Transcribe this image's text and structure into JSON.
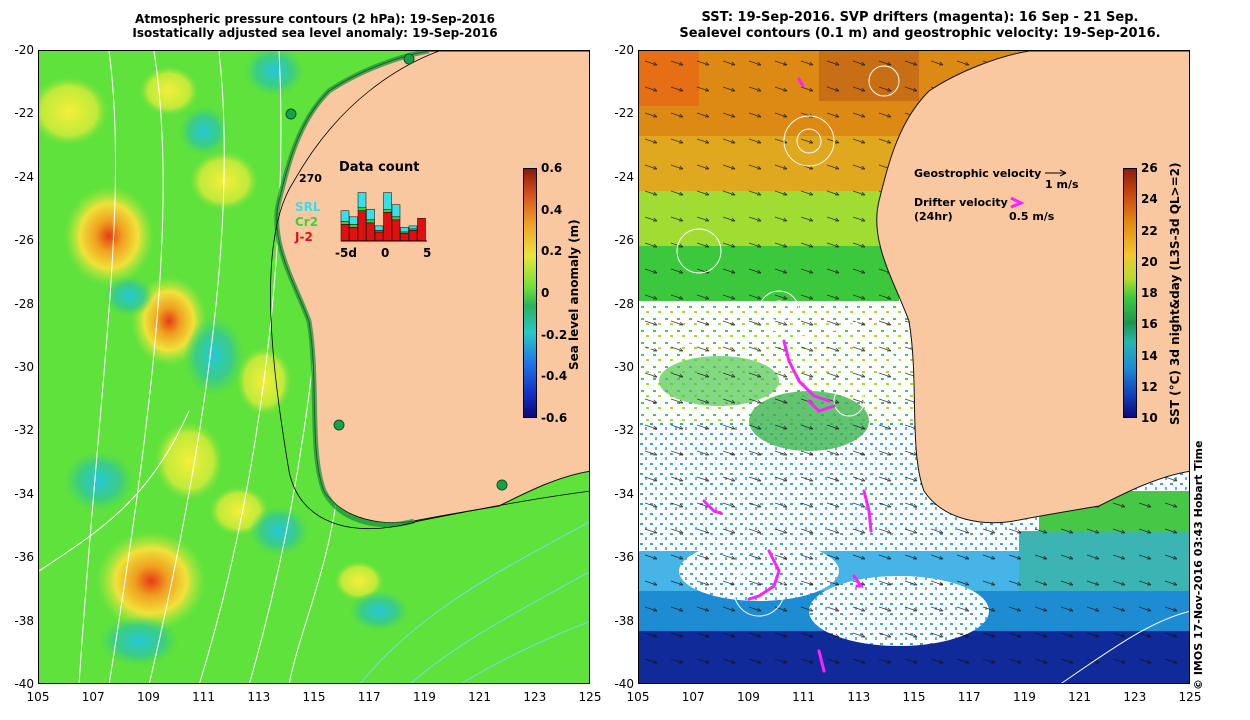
{
  "left_panel": {
    "title_line1": "Atmospheric pressure contours (2 hPa): 19-Sep-2016",
    "title_line2": "Isostatically adjusted sea level anomaly: 19-Sep-2016",
    "colorbar": {
      "label": "Sea level anomaly (m)",
      "ticks": [
        "0.6",
        "0.4",
        "0.2",
        "0",
        "-0.2",
        "-0.4",
        "-0.6"
      ],
      "range": [
        -0.6,
        0.6
      ]
    },
    "inset": {
      "title": "Data count",
      "max_label": "270",
      "legend": [
        {
          "name": "SRL",
          "color": "#36e0e8"
        },
        {
          "name": "Cr2",
          "color": "#3ccf3c"
        },
        {
          "name": "J-2",
          "color": "#e01010"
        }
      ],
      "x_ticks": [
        "-5d",
        "0",
        "5"
      ],
      "bars": [
        {
          "srl": 0.35,
          "cr2": 0.1,
          "j2": 0.55
        },
        {
          "srl": 0.25,
          "cr2": 0.1,
          "j2": 0.45
        },
        {
          "srl": 0.5,
          "cr2": 0.1,
          "j2": 1.0
        },
        {
          "srl": 0.35,
          "cr2": 0.1,
          "j2": 0.6
        },
        {
          "srl": 0.15,
          "cr2": 0.05,
          "j2": 0.3
        },
        {
          "srl": 0.55,
          "cr2": 0.1,
          "j2": 0.95
        },
        {
          "srl": 0.4,
          "cr2": 0.1,
          "j2": 0.7
        },
        {
          "srl": 0.15,
          "cr2": 0.05,
          "j2": 0.25
        },
        {
          "srl": 0.1,
          "cr2": 0.05,
          "j2": 0.35
        },
        {
          "srl": 0.0,
          "cr2": 0.0,
          "j2": 0.75
        }
      ]
    }
  },
  "right_panel": {
    "title_line1": "SST: 19-Sep-2016. SVP drifters (magenta): 16 Sep - 21 Sep.",
    "title_line2": "Sealevel contours (0.1 m) and geostrophic velocity: 19-Sep-2016.",
    "colorbar": {
      "label": "SST (°C) 3d night&day (L3S-3d QL>=2)",
      "ticks": [
        "26",
        "24",
        "22",
        "20",
        "18",
        "16",
        "14",
        "12",
        "10"
      ],
      "range": [
        10,
        26
      ]
    },
    "legend": {
      "geostrophic_label": "Geostrophic velocity",
      "geostrophic_scale": "1 m/s",
      "drifter_label": "Drifter velocity",
      "drifter_sub": "(24hr)",
      "drifter_scale": "0.5 m/s"
    }
  },
  "axes": {
    "lat_ticks": [
      "-20",
      "-22",
      "-24",
      "-26",
      "-28",
      "-30",
      "-32",
      "-34",
      "-36",
      "-38",
      "-40"
    ],
    "lon_ticks": [
      "105",
      "107",
      "109",
      "111",
      "113",
      "115",
      "117",
      "119",
      "121",
      "123",
      "125"
    ]
  },
  "credit": "© IMOS 17-Nov-2016 03:43 Hobart Time",
  "colors": {
    "land": "#fac8a0",
    "ssh_green": "#5fe23c",
    "ssh_yellow": "#e6ee3a",
    "sst_orange": "#dc8a14",
    "sst_green": "#3cc83c",
    "sst_blue": "#1e8cd2",
    "drifter": "#ff20ff"
  }
}
